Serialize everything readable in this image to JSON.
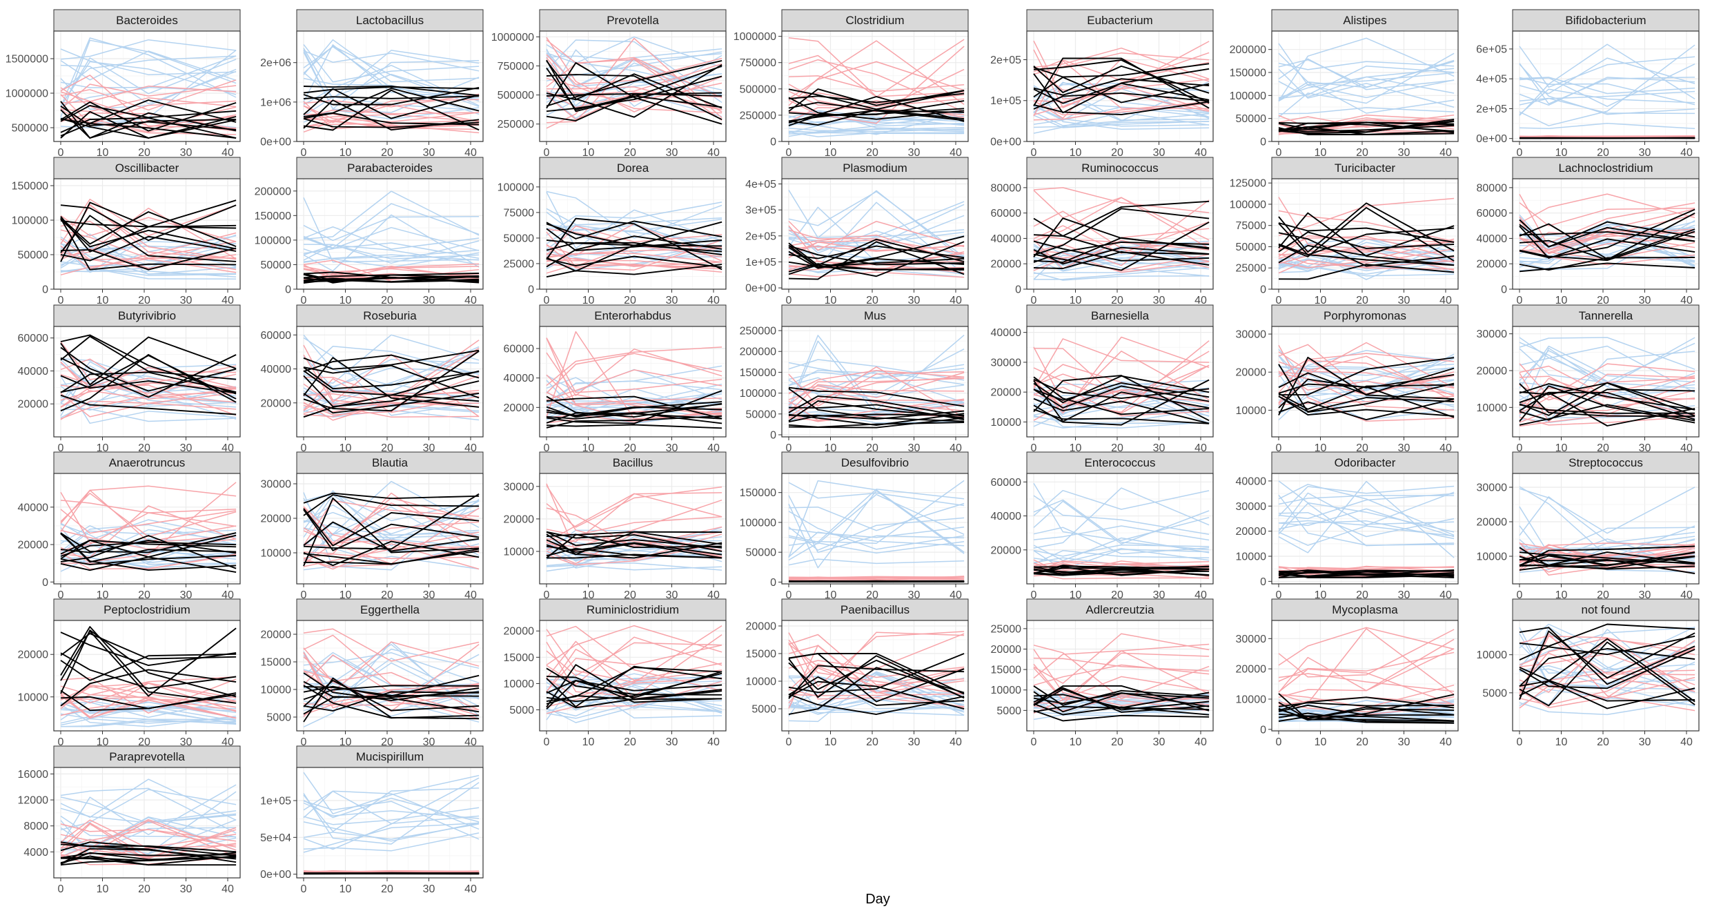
{
  "figure": {
    "xlabel": "Day",
    "colors": {
      "groupA": "#000000",
      "groupB": "#f7a3a8",
      "groupC": "#b4d3f0",
      "strip_bg": "#d9d9d9",
      "grid": "#ebebeb"
    }
  },
  "chart_data": {
    "type": "line",
    "x": [
      0,
      7,
      21,
      42
    ],
    "x_ticks": [
      "0",
      "10",
      "20",
      "30",
      "40"
    ],
    "xlim": [
      -1.5,
      43.5
    ],
    "panels": [
      {
        "name": "Bacteroides",
        "ylim": [
          300000,
          1900000
        ],
        "yticks": [
          500000,
          1000000,
          1500000
        ],
        "ytick_labels": [
          "500000",
          "1000000",
          "1500000"
        ],
        "black_range": [
          350000,
          900000
        ],
        "pink_range": [
          400000,
          1300000
        ],
        "blue_range": [
          500000,
          1800000
        ]
      },
      {
        "name": "Lactobacillus",
        "ylim": [
          0,
          2800000
        ],
        "yticks": [
          0,
          1000000,
          2000000
        ],
        "ytick_labels": [
          "0e+00",
          "1e+06",
          "2e+06"
        ],
        "black_range": [
          200000,
          1400000
        ],
        "pink_range": [
          200000,
          1200000
        ],
        "blue_range": [
          300000,
          2600000
        ]
      },
      {
        "name": "Prevotella",
        "ylim": [
          100000,
          1050000
        ],
        "yticks": [
          250000,
          500000,
          750000,
          1000000
        ],
        "ytick_labels": [
          "250000",
          "500000",
          "750000",
          "1000000"
        ],
        "black_range": [
          250000,
          800000
        ],
        "pink_range": [
          150000,
          1000000
        ],
        "blue_range": [
          300000,
          1000000
        ]
      },
      {
        "name": "Clostridium",
        "ylim": [
          0,
          1050000
        ],
        "yticks": [
          0,
          250000,
          500000,
          750000,
          1000000
        ],
        "ytick_labels": [
          "0",
          "250000",
          "500000",
          "750000",
          "1000000"
        ],
        "black_range": [
          150000,
          500000
        ],
        "pink_range": [
          100000,
          1000000
        ],
        "blue_range": [
          20000,
          300000
        ]
      },
      {
        "name": "Eubacterium",
        "ylim": [
          0,
          270000
        ],
        "yticks": [
          0,
          100000,
          200000
        ],
        "ytick_labels": [
          "0e+00",
          "1e+05",
          "2e+05"
        ],
        "black_range": [
          50000,
          210000
        ],
        "pink_range": [
          30000,
          260000
        ],
        "blue_range": [
          10000,
          150000
        ]
      },
      {
        "name": "Alistipes",
        "ylim": [
          0,
          240000
        ],
        "yticks": [
          0,
          50000,
          100000,
          150000,
          200000
        ],
        "ytick_labels": [
          "0",
          "50000",
          "100000",
          "150000",
          "200000"
        ],
        "black_range": [
          15000,
          50000
        ],
        "pink_range": [
          15000,
          60000
        ],
        "blue_range": [
          20000,
          230000
        ]
      },
      {
        "name": "Bifidobacterium",
        "ylim": [
          -20000,
          720000
        ],
        "yticks": [
          0,
          200000,
          400000,
          600000
        ],
        "ytick_labels": [
          "0e+00",
          "2e+05",
          "4e+05",
          "6e+05"
        ],
        "black_range": [
          0,
          5000
        ],
        "pink_range": [
          0,
          20000
        ],
        "blue_range": [
          0,
          680000
        ]
      },
      {
        "name": "Oscillibacter",
        "ylim": [
          0,
          160000
        ],
        "yticks": [
          0,
          50000,
          100000,
          150000
        ],
        "ytick_labels": [
          "0",
          "50000",
          "100000",
          "150000"
        ],
        "black_range": [
          15000,
          130000
        ],
        "pink_range": [
          10000,
          150000
        ],
        "blue_range": [
          5000,
          80000
        ]
      },
      {
        "name": "Parabacteroides",
        "ylim": [
          0,
          225000
        ],
        "yticks": [
          0,
          50000,
          100000,
          150000,
          200000
        ],
        "ytick_labels": [
          "0",
          "50000",
          "100000",
          "150000",
          "200000"
        ],
        "black_range": [
          10000,
          35000
        ],
        "pink_range": [
          10000,
          60000
        ],
        "blue_range": [
          10000,
          200000
        ]
      },
      {
        "name": "Dorea",
        "ylim": [
          0,
          108000
        ],
        "yticks": [
          0,
          25000,
          50000,
          75000,
          100000
        ],
        "ytick_labels": [
          "0",
          "25000",
          "50000",
          "75000",
          "100000"
        ],
        "black_range": [
          8000,
          70000
        ],
        "pink_range": [
          10000,
          65000
        ],
        "blue_range": [
          5000,
          100000
        ]
      },
      {
        "name": "Plasmodium",
        "ylim": [
          -5000,
          420000
        ],
        "yticks": [
          0,
          100000,
          200000,
          300000,
          400000
        ],
        "ytick_labels": [
          "0e+00",
          "1e+05",
          "2e+05",
          "3e+05",
          "4e+05"
        ],
        "black_range": [
          0,
          200000
        ],
        "pink_range": [
          0,
          290000
        ],
        "blue_range": [
          0,
          390000
        ]
      },
      {
        "name": "Ruminococcus",
        "ylim": [
          0,
          87000
        ],
        "yticks": [
          0,
          20000,
          40000,
          60000,
          80000
        ],
        "ytick_labels": [
          "0",
          "20000",
          "40000",
          "60000",
          "80000"
        ],
        "black_range": [
          12000,
          70000
        ],
        "pink_range": [
          10000,
          80000
        ],
        "blue_range": [
          5000,
          40000
        ]
      },
      {
        "name": "Turicibacter",
        "ylim": [
          0,
          130000
        ],
        "yticks": [
          0,
          25000,
          50000,
          75000,
          100000,
          125000
        ],
        "ytick_labels": [
          "0",
          "25000",
          "50000",
          "75000",
          "100000",
          "125000"
        ],
        "black_range": [
          3000,
          105000
        ],
        "pink_range": [
          3000,
          120000
        ],
        "blue_range": [
          5000,
          60000
        ]
      },
      {
        "name": "Lachnoclostridium",
        "ylim": [
          0,
          87000
        ],
        "yticks": [
          0,
          20000,
          40000,
          60000,
          80000
        ],
        "ytick_labels": [
          "0",
          "20000",
          "40000",
          "60000",
          "80000"
        ],
        "black_range": [
          10000,
          65000
        ],
        "pink_range": [
          10000,
          75000
        ],
        "blue_range": [
          8000,
          60000
        ]
      },
      {
        "name": "Butyrivibrio",
        "ylim": [
          0,
          67000
        ],
        "yticks": [
          20000,
          40000,
          60000
        ],
        "ytick_labels": [
          "20000",
          "40000",
          "60000"
        ],
        "black_range": [
          10000,
          65000
        ],
        "pink_range": [
          5000,
          62000
        ],
        "blue_range": [
          5000,
          50000
        ]
      },
      {
        "name": "Roseburia",
        "ylim": [
          0,
          65000
        ],
        "yticks": [
          20000,
          40000,
          60000
        ],
        "ytick_labels": [
          "20000",
          "40000",
          "60000"
        ],
        "black_range": [
          8000,
          55000
        ],
        "pink_range": [
          5000,
          62000
        ],
        "blue_range": [
          5000,
          60000
        ]
      },
      {
        "name": "Enterorhabdus",
        "ylim": [
          0,
          75000
        ],
        "yticks": [
          20000,
          40000,
          60000
        ],
        "ytick_labels": [
          "20000",
          "40000",
          "60000"
        ],
        "black_range": [
          5000,
          32000
        ],
        "pink_range": [
          5000,
          72000
        ],
        "blue_range": [
          5000,
          50000
        ]
      },
      {
        "name": "Mus",
        "ylim": [
          -5000,
          260000
        ],
        "yticks": [
          0,
          50000,
          100000,
          150000,
          200000,
          250000
        ],
        "ytick_labels": [
          "0",
          "50000",
          "100000",
          "150000",
          "200000",
          "250000"
        ],
        "black_range": [
          0,
          120000
        ],
        "pink_range": [
          0,
          170000
        ],
        "blue_range": [
          0,
          240000
        ]
      },
      {
        "name": "Barnesiella",
        "ylim": [
          5000,
          42000
        ],
        "yticks": [
          10000,
          20000,
          30000,
          40000
        ],
        "ytick_labels": [
          "10000",
          "20000",
          "30000",
          "40000"
        ],
        "black_range": [
          9000,
          27000
        ],
        "pink_range": [
          9000,
          39000
        ],
        "blue_range": [
          8000,
          25000
        ]
      },
      {
        "name": "Porphyromonas",
        "ylim": [
          3000,
          32000
        ],
        "yticks": [
          10000,
          20000,
          30000
        ],
        "ytick_labels": [
          "10000",
          "20000",
          "30000"
        ],
        "black_range": [
          7000,
          24000
        ],
        "pink_range": [
          6000,
          29000
        ],
        "blue_range": [
          7000,
          26000
        ]
      },
      {
        "name": "Tannerella",
        "ylim": [
          2000,
          32000
        ],
        "yticks": [
          10000,
          20000,
          30000
        ],
        "ytick_labels": [
          "10000",
          "20000",
          "30000"
        ],
        "black_range": [
          5000,
          17000
        ],
        "pink_range": [
          4000,
          22000
        ],
        "blue_range": [
          5000,
          29000
        ]
      },
      {
        "name": "Anaerotruncus",
        "ylim": [
          -1000,
          58000
        ],
        "yticks": [
          0,
          20000,
          40000
        ],
        "ytick_labels": [
          "0",
          "20000",
          "40000"
        ],
        "black_range": [
          5000,
          27000
        ],
        "pink_range": [
          3000,
          54000
        ],
        "blue_range": [
          2000,
          35000
        ]
      },
      {
        "name": "Blautia",
        "ylim": [
          1000,
          33000
        ],
        "yticks": [
          10000,
          20000,
          30000
        ],
        "ytick_labels": [
          "10000",
          "20000",
          "30000"
        ],
        "black_range": [
          5000,
          30000
        ],
        "pink_range": [
          3000,
          28000
        ],
        "blue_range": [
          3000,
          31000
        ]
      },
      {
        "name": "Bacillus",
        "ylim": [
          0,
          34000
        ],
        "yticks": [
          10000,
          20000,
          30000
        ],
        "ytick_labels": [
          "10000",
          "20000",
          "30000"
        ],
        "black_range": [
          8000,
          16000
        ],
        "pink_range": [
          5000,
          32000
        ],
        "blue_range": [
          3000,
          18000
        ]
      },
      {
        "name": "Desulfovibrio",
        "ylim": [
          -3000,
          182000
        ],
        "yticks": [
          0,
          50000,
          100000,
          150000
        ],
        "ytick_labels": [
          "0",
          "50000",
          "100000",
          "150000"
        ],
        "black_range": [
          0,
          2000
        ],
        "pink_range": [
          0,
          10000
        ],
        "blue_range": [
          0,
          170000
        ]
      },
      {
        "name": "Enterococcus",
        "ylim": [
          0,
          65000
        ],
        "yticks": [
          20000,
          40000,
          60000
        ],
        "ytick_labels": [
          "20000",
          "40000",
          "60000"
        ],
        "black_range": [
          5000,
          12000
        ],
        "pink_range": [
          3000,
          15000
        ],
        "blue_range": [
          3000,
          60000
        ]
      },
      {
        "name": "Odoribacter",
        "ylim": [
          -1000,
          43000
        ],
        "yticks": [
          0,
          10000,
          20000,
          30000,
          40000
        ],
        "ytick_labels": [
          "0",
          "10000",
          "20000",
          "30000",
          "40000"
        ],
        "black_range": [
          1500,
          4500
        ],
        "pink_range": [
          2000,
          6000
        ],
        "blue_range": [
          8000,
          40000
        ]
      },
      {
        "name": "Streptococcus",
        "ylim": [
          2000,
          34000
        ],
        "yticks": [
          10000,
          20000,
          30000
        ],
        "ytick_labels": [
          "10000",
          "20000",
          "30000"
        ],
        "black_range": [
          5000,
          13000
        ],
        "pink_range": [
          4000,
          15000
        ],
        "blue_range": [
          4000,
          32000
        ]
      },
      {
        "name": "Peptoclostridium",
        "ylim": [
          2000,
          28000
        ],
        "yticks": [
          10000,
          20000
        ],
        "ytick_labels": [
          "10000",
          "20000"
        ],
        "black_range": [
          6000,
          27000
        ],
        "pink_range": [
          5000,
          15000
        ],
        "blue_range": [
          3000,
          10000
        ]
      },
      {
        "name": "Eggerthella",
        "ylim": [
          2500,
          22500
        ],
        "yticks": [
          5000,
          10000,
          15000,
          20000
        ],
        "ytick_labels": [
          "5000",
          "10000",
          "15000",
          "20000"
        ],
        "black_range": [
          3500,
          13000
        ],
        "pink_range": [
          4000,
          21000
        ],
        "blue_range": [
          3000,
          19000
        ]
      },
      {
        "name": "Ruminiclostridium",
        "ylim": [
          1000,
          22000
        ],
        "yticks": [
          5000,
          10000,
          15000,
          20000
        ],
        "ytick_labels": [
          "5000",
          "10000",
          "15000",
          "20000"
        ],
        "black_range": [
          4000,
          15000
        ],
        "pink_range": [
          4000,
          21000
        ],
        "blue_range": [
          2000,
          12000
        ]
      },
      {
        "name": "Paenibacillus",
        "ylim": [
          1000,
          21000
        ],
        "yticks": [
          5000,
          10000,
          15000,
          20000
        ],
        "ytick_labels": [
          "5000",
          "10000",
          "15000",
          "20000"
        ],
        "black_range": [
          4000,
          15000
        ],
        "pink_range": [
          4000,
          19000
        ],
        "blue_range": [
          2000,
          12000
        ]
      },
      {
        "name": "Adlercreutzia",
        "ylim": [
          0,
          27000
        ],
        "yticks": [
          5000,
          10000,
          15000,
          20000,
          25000
        ],
        "ytick_labels": [
          "5000",
          "10000",
          "15000",
          "20000",
          "25000"
        ],
        "black_range": [
          2000,
          11000
        ],
        "pink_range": [
          3000,
          24000
        ],
        "blue_range": [
          2000,
          10000
        ]
      },
      {
        "name": "Mycoplasma",
        "ylim": [
          -500,
          36000
        ],
        "yticks": [
          0,
          10000,
          20000,
          30000
        ],
        "ytick_labels": [
          "0",
          "10000",
          "20000",
          "30000"
        ],
        "black_range": [
          1500,
          12000
        ],
        "pink_range": [
          2000,
          34000
        ],
        "blue_range": [
          1000,
          10000
        ]
      },
      {
        "name": "not found",
        "ylim": [
          0,
          14500
        ],
        "yticks": [
          5000,
          10000
        ],
        "ytick_labels": [
          "5000",
          "10000"
        ],
        "black_range": [
          2000,
          14000
        ],
        "pink_range": [
          2000,
          13000
        ],
        "blue_range": [
          2000,
          14000
        ]
      },
      {
        "name": "Paraprevotella",
        "ylim": [
          0,
          17000
        ],
        "yticks": [
          4000,
          8000,
          12000,
          16000
        ],
        "ytick_labels": [
          "4000",
          "8000",
          "12000",
          "16000"
        ],
        "black_range": [
          2000,
          5500
        ],
        "pink_range": [
          2000,
          9000
        ],
        "blue_range": [
          2000,
          16000
        ]
      },
      {
        "name": "Mucispirillum",
        "ylim": [
          -5000,
          145000
        ],
        "yticks": [
          0,
          50000,
          100000
        ],
        "ytick_labels": [
          "0e+00",
          "5e+04",
          "1e+05"
        ],
        "black_range": [
          0,
          2000
        ],
        "pink_range": [
          0,
          5000
        ],
        "blue_range": [
          0,
          140000
        ]
      }
    ]
  }
}
